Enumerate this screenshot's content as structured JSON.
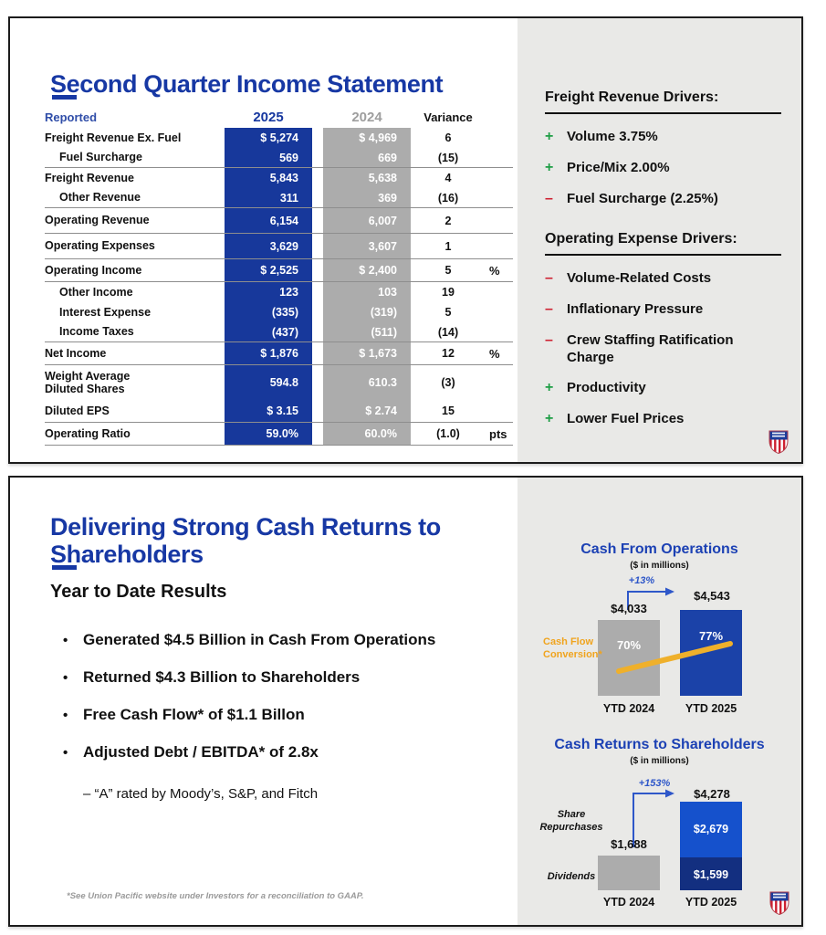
{
  "slide1": {
    "title": "Second Quarter Income Statement",
    "table": {
      "headers": {
        "reported": "Reported",
        "y2025": "2025",
        "y2024": "2024",
        "variance": "Variance"
      },
      "rows": [
        {
          "label": "Freight Revenue Ex. Fuel",
          "indent": false,
          "v2025": "$ 5,274",
          "v2024": "$ 4,969",
          "variance": "6",
          "unit": "",
          "line": false,
          "size": "n"
        },
        {
          "label": "Fuel Surcharge",
          "indent": true,
          "v2025": "569",
          "v2024": "669",
          "variance": "(15)",
          "unit": "",
          "line": true,
          "size": "n"
        },
        {
          "label": "Freight Revenue",
          "indent": false,
          "v2025": "5,843",
          "v2024": "5,638",
          "variance": "4",
          "unit": "",
          "line": false,
          "size": "n"
        },
        {
          "label": "Other Revenue",
          "indent": true,
          "v2025": "311",
          "v2024": "369",
          "variance": "(16)",
          "unit": "",
          "line": true,
          "size": "n"
        },
        {
          "label": "Operating Revenue",
          "indent": false,
          "v2025": "6,154",
          "v2024": "6,007",
          "variance": "2",
          "unit": "",
          "line": true,
          "size": "t"
        },
        {
          "label": "Operating Expenses",
          "indent": false,
          "v2025": "3,629",
          "v2024": "3,607",
          "variance": "1",
          "unit": "",
          "line": true,
          "size": "t"
        },
        {
          "label": "Operating Income",
          "indent": false,
          "v2025": "$ 2,525",
          "v2024": "$ 2,400",
          "variance": "5",
          "unit": "%",
          "line": true,
          "size": "m"
        },
        {
          "label": "Other Income",
          "indent": true,
          "v2025": "123",
          "v2024": "103",
          "variance": "19",
          "unit": "",
          "line": false,
          "size": "n"
        },
        {
          "label": "Interest Expense",
          "indent": true,
          "v2025": "(335)",
          "v2024": "(319)",
          "variance": "5",
          "unit": "",
          "line": false,
          "size": "n"
        },
        {
          "label": "Income Taxes",
          "indent": true,
          "v2025": "(437)",
          "v2024": "(511)",
          "variance": "(14)",
          "unit": "",
          "line": true,
          "size": "n"
        },
        {
          "label": "Net Income",
          "indent": false,
          "v2025": "$ 1,876",
          "v2024": "$ 1,673",
          "variance": "12",
          "unit": "%",
          "line": true,
          "size": "m"
        },
        {
          "label": "Weight Average\nDiluted Shares",
          "indent": false,
          "v2025": "594.8",
          "v2024": "610.3",
          "variance": "(3)",
          "unit": "",
          "line": false,
          "size": "xl"
        },
        {
          "label": "Diluted EPS",
          "indent": false,
          "v2025": "$ 3.15",
          "v2024": "$ 2.74",
          "variance": "15",
          "unit": "",
          "line": true,
          "size": "m"
        },
        {
          "label": "Operating Ratio",
          "indent": false,
          "v2025": "59.0%",
          "v2024": "60.0%",
          "variance": "(1.0)",
          "unit": "pts",
          "line": true,
          "size": "m"
        }
      ]
    },
    "freight_drivers": {
      "heading": "Freight Revenue Drivers:",
      "items": [
        {
          "sign": "+",
          "text": "Volume 3.75%"
        },
        {
          "sign": "+",
          "text": "Price/Mix 2.00%"
        },
        {
          "sign": "-",
          "text": "Fuel Surcharge (2.25%)"
        }
      ]
    },
    "expense_drivers": {
      "heading": "Operating Expense Drivers:",
      "items": [
        {
          "sign": "-",
          "text": "Volume-Related Costs"
        },
        {
          "sign": "-",
          "text": "Inflationary Pressure"
        },
        {
          "sign": "-",
          "text": "Crew Staffing Ratification Charge"
        },
        {
          "sign": "+",
          "text": "Productivity"
        },
        {
          "sign": "+",
          "text": "Lower Fuel Prices"
        }
      ]
    }
  },
  "slide2": {
    "title": "Delivering Strong Cash Returns to Shareholders",
    "section_heading": "Year to Date Results",
    "bullets": [
      "Generated $4.5 Billion in Cash From Operations",
      "Returned $4.3 Billion to Shareholders",
      "Free Cash Flow* of $1.1 Billon",
      "Adjusted Debt / EBITDA* of 2.8x"
    ],
    "sub_bullet": "– “A” rated by Moody’s, S&P, and Fitch",
    "footnote": "*See Union Pacific website under Investors for a reconciliation to GAAP."
  },
  "chart_data": [
    {
      "type": "bar",
      "title": "Cash From Operations",
      "subtitle": "($ in millions)",
      "categories": [
        "YTD 2024",
        "YTD 2025"
      ],
      "values": [
        4033,
        4543
      ],
      "value_labels": [
        "$4,033",
        "$4,543"
      ],
      "change_label": "+13%",
      "bar_colors": [
        "#ACACAC",
        "#1B42A8"
      ],
      "ylim": [
        0,
        4543
      ],
      "overlay": {
        "name": "Cash Flow Conversion*",
        "values": [
          70,
          77
        ],
        "labels": [
          "70%",
          "77%"
        ],
        "color": "#EFB02B"
      }
    },
    {
      "type": "stacked-bar",
      "title": "Cash Returns to Shareholders",
      "subtitle": "($ in millions)",
      "categories": [
        "YTD 2024",
        "YTD 2025"
      ],
      "series": [
        {
          "name": "Share Repurchases",
          "values": [
            null,
            2679
          ],
          "labels": [
            "",
            "$2,679"
          ],
          "color": "#1551CC"
        },
        {
          "name": "Dividends",
          "values": [
            null,
            1599
          ],
          "labels": [
            "",
            "$1,599"
          ],
          "color": "#132F80"
        }
      ],
      "totals": [
        1688,
        4278
      ],
      "total_labels": [
        "$1,688",
        "$4,278"
      ],
      "change_label": "+153%",
      "gray_bar_color": "#ACACAC",
      "ylim": [
        0,
        4278
      ]
    }
  ],
  "colors": {
    "accent_blue": "#1738A4",
    "table_blue": "#17389B",
    "table_gray": "#ACACAC",
    "panel_gray": "#E9E9E7",
    "green": "#1F9E46",
    "red": "#CE2030",
    "gold": "#EFB02B",
    "chart_blue": "#1B42A8",
    "stack_light_blue": "#1551CC",
    "stack_dark_blue": "#132F80"
  }
}
